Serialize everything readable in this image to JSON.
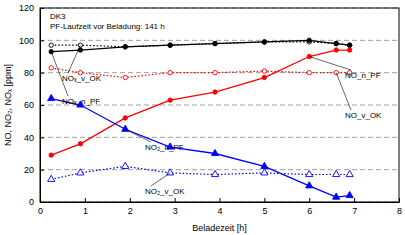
{
  "chart_data": {
    "type": "line",
    "annotations": [
      "DK3",
      "PF-Laufzeit vor Beladung: 141 h"
    ],
    "x_label": "Beladezeit [h]",
    "y_label": "NO, NO₂, NOₓ [ppm]",
    "x": [
      0.25,
      0.9,
      1.9,
      2.9,
      3.9,
      5.0,
      6.0,
      6.6,
      6.9
    ],
    "series": [
      {
        "name": "NOₓ_v_OK",
        "color": "#000000",
        "marker": "circle-open",
        "line_style": "dotted",
        "values": [
          97,
          97,
          96,
          97,
          98,
          99,
          99,
          98,
          97
        ]
      },
      {
        "name": "NOₓ_n_PF",
        "color": "#000000",
        "marker": "circle",
        "line_style": "solid",
        "values": [
          93,
          94,
          96,
          97,
          98,
          99,
          100,
          98,
          97
        ]
      },
      {
        "name": "NO_n_PF",
        "color": "#ff0000",
        "marker": "circle",
        "line_style": "solid",
        "values": [
          29,
          36,
          52,
          63,
          68,
          77,
          90,
          94,
          94
        ]
      },
      {
        "name": "NO_v_OK",
        "color": "#ff0000",
        "marker": "circle-open",
        "line_style": "dotted",
        "values": [
          83,
          80,
          77,
          80,
          80,
          81,
          80,
          80,
          80
        ]
      },
      {
        "name": "NO₂_n_PF",
        "color": "#0000ff",
        "marker": "triangle",
        "line_style": "solid",
        "values": [
          64,
          60,
          45,
          34,
          30,
          22,
          10,
          3,
          4
        ]
      },
      {
        "name": "NO₂_v_OK",
        "color": "#0000ff",
        "marker": "triangle-open",
        "line_style": "dotted",
        "values": [
          14,
          18,
          22,
          18,
          17,
          18,
          17,
          17,
          17
        ]
      }
    ],
    "xlim": [
      0,
      8
    ],
    "xticks": [
      0,
      1,
      2,
      3,
      4,
      5,
      6,
      7,
      8
    ],
    "ylim": [
      0,
      120
    ],
    "yticks": [
      0,
      20,
      40,
      60,
      80,
      100,
      120
    ],
    "grid": true
  }
}
